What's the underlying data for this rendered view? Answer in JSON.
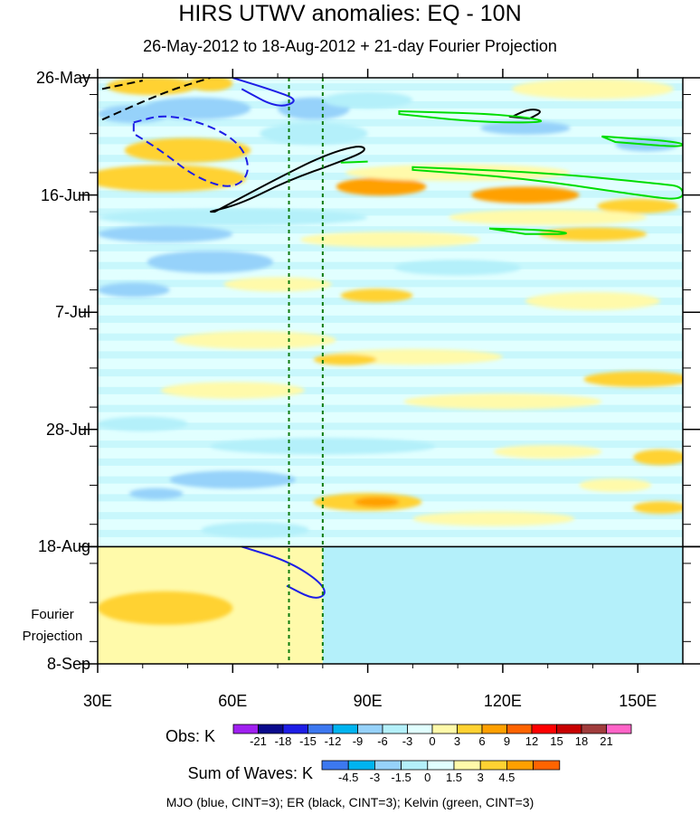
{
  "chart_data": {
    "type": "heatmap",
    "title": "HIRS UTWV anomalies: EQ - 10N",
    "subtitle": "26-May-2012 to 18-Aug-2012 + 21-day Fourier Projection",
    "x_ticks": [
      {
        "value": 30,
        "label": "30E"
      },
      {
        "value": 60,
        "label": "60E"
      },
      {
        "value": 90,
        "label": "90E"
      },
      {
        "value": 120,
        "label": "120E"
      },
      {
        "value": 150,
        "label": "150E"
      }
    ],
    "xlim": [
      30,
      160
    ],
    "y_ticks": [
      {
        "day": 0,
        "label": "26-May"
      },
      {
        "day": 21,
        "label": "16-Jun"
      },
      {
        "day": 42,
        "label": "7-Jul"
      },
      {
        "day": 63,
        "label": "28-Jul"
      },
      {
        "day": 84,
        "label": "18-Aug"
      },
      {
        "day": 105,
        "label": "8-Sep"
      }
    ],
    "ylim_days": [
      0,
      105
    ],
    "projection_start_day": 84,
    "projection_label": [
      "Fourier",
      "Projection"
    ],
    "reference_lines_lon": [
      72.5,
      80
    ],
    "obs_colorbar": {
      "title": "Obs: K",
      "labels": [
        "-21",
        "-18",
        "-15",
        "-12",
        "-9",
        "-6",
        "-3",
        "0",
        "3",
        "6",
        "9",
        "12",
        "15",
        "18",
        "21"
      ],
      "colors": [
        "#a020f0",
        "#0a0a8c",
        "#1e1ee6",
        "#3c78f0",
        "#00b4f0",
        "#96d2fa",
        "#b4f0fa",
        "#e1ffff",
        "#fffaaa",
        "#ffd232",
        "#ffa000",
        "#ff6400",
        "#ff0000",
        "#c80000",
        "#a03c3c",
        "#ff64c8"
      ]
    },
    "sow_colorbar": {
      "title": "Sum of Waves: K",
      "labels": [
        "-4.5",
        "-3",
        "-1.5",
        "0",
        "1.5",
        "3",
        "4.5"
      ],
      "colors": [
        "#3c78f0",
        "#00b4f0",
        "#96d2fa",
        "#b4f0fa",
        "#e1ffff",
        "#fffaaa",
        "#ffd232",
        "#ffa000",
        "#ff6400"
      ]
    },
    "overlays_legend": "MJO (blue, CINT=3); ER (black, CINT=3); Kelvin (green, CINT=3)",
    "heat_blobs": [
      {
        "lon": 42,
        "day": 1.5,
        "rlon": 10,
        "rday": 1.6,
        "level": "pos_mid"
      },
      {
        "lon": 55,
        "day": 1,
        "rlon": 5,
        "rday": 1.4,
        "level": "pos_mid"
      },
      {
        "lon": 38,
        "day": 6.5,
        "rlon": 8,
        "rday": 1.6,
        "level": "neg_mid"
      },
      {
        "lon": 52,
        "day": 5.5,
        "rlon": 12,
        "rday": 2,
        "level": "neg_mid"
      },
      {
        "lon": 78,
        "day": 5.5,
        "rlon": 8,
        "rday": 2,
        "level": "neg_mid"
      },
      {
        "lon": 90,
        "day": 4,
        "rlon": 10,
        "rday": 1.5,
        "level": "neg_low"
      },
      {
        "lon": 140,
        "day": 2,
        "rlon": 18,
        "rday": 1.8,
        "level": "pos_low"
      },
      {
        "lon": 125,
        "day": 9,
        "rlon": 10,
        "rday": 1.2,
        "level": "neg_mid"
      },
      {
        "lon": 152,
        "day": 12,
        "rlon": 7,
        "rday": 1.2,
        "level": "neg_mid"
      },
      {
        "lon": 50,
        "day": 13,
        "rlon": 14,
        "rday": 2.2,
        "level": "pos_mid"
      },
      {
        "lon": 45,
        "day": 18,
        "rlon": 18,
        "rday": 2.4,
        "level": "pos_mid"
      },
      {
        "lon": 93,
        "day": 19.5,
        "rlon": 10,
        "rday": 1.6,
        "level": "pos_high"
      },
      {
        "lon": 125,
        "day": 21,
        "rlon": 12,
        "rday": 1.5,
        "level": "pos_high"
      },
      {
        "lon": 110,
        "day": 17,
        "rlon": 25,
        "rday": 1.5,
        "level": "pos_low"
      },
      {
        "lon": 150,
        "day": 23,
        "rlon": 9,
        "rday": 1.3,
        "level": "pos_mid"
      },
      {
        "lon": 78,
        "day": 10,
        "rlon": 12,
        "rday": 2,
        "level": "neg_low"
      },
      {
        "lon": 60,
        "day": 25,
        "rlon": 30,
        "rday": 1.5,
        "level": "neg_low"
      },
      {
        "lon": 130,
        "day": 25,
        "rlon": 22,
        "rday": 1.4,
        "level": "pos_low"
      },
      {
        "lon": 45,
        "day": 28,
        "rlon": 15,
        "rday": 1.5,
        "level": "neg_mid"
      },
      {
        "lon": 95,
        "day": 29,
        "rlon": 20,
        "rday": 1.4,
        "level": "pos_low"
      },
      {
        "lon": 140,
        "day": 28,
        "rlon": 12,
        "rday": 1.2,
        "level": "pos_mid"
      },
      {
        "lon": 55,
        "day": 33,
        "rlon": 14,
        "rday": 2,
        "level": "neg_mid"
      },
      {
        "lon": 110,
        "day": 34,
        "rlon": 14,
        "rday": 1.4,
        "level": "neg_low"
      },
      {
        "lon": 38,
        "day": 38,
        "rlon": 8,
        "rday": 1.3,
        "level": "neg_mid"
      },
      {
        "lon": 70,
        "day": 37,
        "rlon": 12,
        "rday": 1.3,
        "level": "pos_low"
      },
      {
        "lon": 92,
        "day": 39,
        "rlon": 8,
        "rday": 1.2,
        "level": "pos_mid"
      },
      {
        "lon": 140,
        "day": 40,
        "rlon": 15,
        "rday": 1.6,
        "level": "pos_low"
      },
      {
        "lon": 65,
        "day": 47,
        "rlon": 18,
        "rday": 1.6,
        "level": "pos_low"
      },
      {
        "lon": 100,
        "day": 50,
        "rlon": 20,
        "rday": 1.4,
        "level": "pos_low"
      },
      {
        "lon": 85,
        "day": 50.5,
        "rlon": 7,
        "rday": 1,
        "level": "pos_mid"
      },
      {
        "lon": 150,
        "day": 54,
        "rlon": 12,
        "rday": 1.4,
        "level": "pos_mid"
      },
      {
        "lon": 60,
        "day": 56,
        "rlon": 16,
        "rday": 1.5,
        "level": "pos_low"
      },
      {
        "lon": 120,
        "day": 58,
        "rlon": 22,
        "rday": 1.4,
        "level": "pos_low"
      },
      {
        "lon": 40,
        "day": 62,
        "rlon": 10,
        "rday": 1.3,
        "level": "neg_low"
      },
      {
        "lon": 80,
        "day": 66,
        "rlon": 25,
        "rday": 1.5,
        "level": "neg_low"
      },
      {
        "lon": 155,
        "day": 68,
        "rlon": 6,
        "rday": 1.4,
        "level": "pos_mid"
      },
      {
        "lon": 130,
        "day": 67,
        "rlon": 12,
        "rday": 1.2,
        "level": "pos_low"
      },
      {
        "lon": 60,
        "day": 72,
        "rlon": 14,
        "rday": 1.6,
        "level": "neg_mid"
      },
      {
        "lon": 43,
        "day": 74.5,
        "rlon": 6,
        "rday": 1,
        "level": "neg_mid"
      },
      {
        "lon": 90,
        "day": 76,
        "rlon": 12,
        "rday": 1.6,
        "level": "pos_mid"
      },
      {
        "lon": 92,
        "day": 76,
        "rlon": 5,
        "rday": 0.9,
        "level": "pos_high"
      },
      {
        "lon": 145,
        "day": 73,
        "rlon": 8,
        "rday": 1.2,
        "level": "pos_low"
      },
      {
        "lon": 155,
        "day": 77,
        "rlon": 6,
        "rday": 1.1,
        "level": "pos_mid"
      },
      {
        "lon": 118,
        "day": 79,
        "rlon": 18,
        "rday": 1.3,
        "level": "pos_low"
      },
      {
        "lon": 65,
        "day": 81,
        "rlon": 12,
        "rday": 1.4,
        "level": "neg_low"
      }
    ],
    "projection_fill": {
      "lon_split": 80,
      "west_level": "pos_low_sow",
      "east_level": "neg_low_sow"
    },
    "projection_blobs": [
      {
        "lon": 45,
        "day": 95,
        "rlon": 15,
        "rday": 3,
        "level": "pos_mid_sow"
      }
    ],
    "contours": [
      {
        "name": "mjo-negative",
        "color": "#1e1ee6",
        "dashed": true,
        "points": [
          [
            38,
            8
          ],
          [
            45,
            6.5
          ],
          [
            55,
            8.5
          ],
          [
            62,
            12
          ],
          [
            64,
            17
          ],
          [
            60,
            20
          ],
          [
            52,
            18
          ],
          [
            44,
            13
          ],
          [
            38,
            10
          ]
        ]
      },
      {
        "name": "mjo-positive-top",
        "color": "#1e1ee6",
        "dashed": false,
        "open": true,
        "points": [
          [
            60,
            0
          ],
          [
            68,
            2
          ],
          [
            75,
            4
          ],
          [
            70,
            5.5
          ],
          [
            62,
            2
          ]
        ]
      },
      {
        "name": "mjo-positive-proj",
        "color": "#1e1ee6",
        "dashed": false,
        "open": true,
        "points": [
          [
            62,
            84
          ],
          [
            72,
            86.5
          ],
          [
            79,
            90
          ],
          [
            81,
            92.5
          ],
          [
            78,
            93.5
          ],
          [
            72,
            91
          ]
        ]
      },
      {
        "name": "er-positive",
        "color": "#000000",
        "dashed": false,
        "points": [
          [
            56,
            24
          ],
          [
            70,
            18
          ],
          [
            80,
            14
          ],
          [
            88,
            12
          ],
          [
            90,
            13
          ],
          [
            84,
            15
          ],
          [
            72,
            18.5
          ],
          [
            62,
            22.5
          ],
          [
            55,
            24
          ]
        ]
      },
      {
        "name": "er-small",
        "color": "#000000",
        "dashed": false,
        "points": [
          [
            122,
            7
          ],
          [
            126,
            5.5
          ],
          [
            129,
            6
          ],
          [
            126,
            7.3
          ]
        ]
      },
      {
        "name": "er-dashed",
        "color": "#000000",
        "dashed": true,
        "open": true,
        "points": [
          [
            31,
            2
          ],
          [
            40,
            0.5
          ]
        ]
      },
      {
        "name": "er-dashed-2",
        "color": "#000000",
        "dashed": true,
        "open": true,
        "points": [
          [
            31,
            7.5
          ],
          [
            45,
            2.5
          ],
          [
            55,
            0
          ]
        ]
      },
      {
        "name": "kelvin-1",
        "color": "#00dd00",
        "dashed": false,
        "points": [
          [
            97,
            6
          ],
          [
            120,
            6.5
          ],
          [
            132,
            8
          ],
          [
            115,
            8
          ],
          [
            97,
            6.5
          ]
        ]
      },
      {
        "name": "kelvin-2",
        "color": "#00dd00",
        "dashed": false,
        "points": [
          [
            100,
            16
          ],
          [
            130,
            17
          ],
          [
            155,
            19
          ],
          [
            160,
            19.5
          ],
          [
            160,
            22
          ],
          [
            150,
            21
          ],
          [
            125,
            18
          ],
          [
            100,
            16.5
          ]
        ]
      },
      {
        "name": "kelvin-3",
        "color": "#00dd00",
        "dashed": false,
        "points": [
          [
            142,
            10.5
          ],
          [
            160,
            11.5
          ],
          [
            160,
            12.5
          ],
          [
            145,
            11.5
          ]
        ]
      },
      {
        "name": "kelvin-4",
        "color": "#00dd00",
        "dashed": false,
        "points": [
          [
            117,
            27
          ],
          [
            130,
            27.3
          ],
          [
            136,
            28
          ],
          [
            125,
            28
          ]
        ]
      },
      {
        "name": "kelvin-5",
        "color": "#00dd00",
        "dashed": false,
        "open": true,
        "points": [
          [
            84,
            15.2
          ],
          [
            90,
            15
          ]
        ]
      }
    ]
  }
}
